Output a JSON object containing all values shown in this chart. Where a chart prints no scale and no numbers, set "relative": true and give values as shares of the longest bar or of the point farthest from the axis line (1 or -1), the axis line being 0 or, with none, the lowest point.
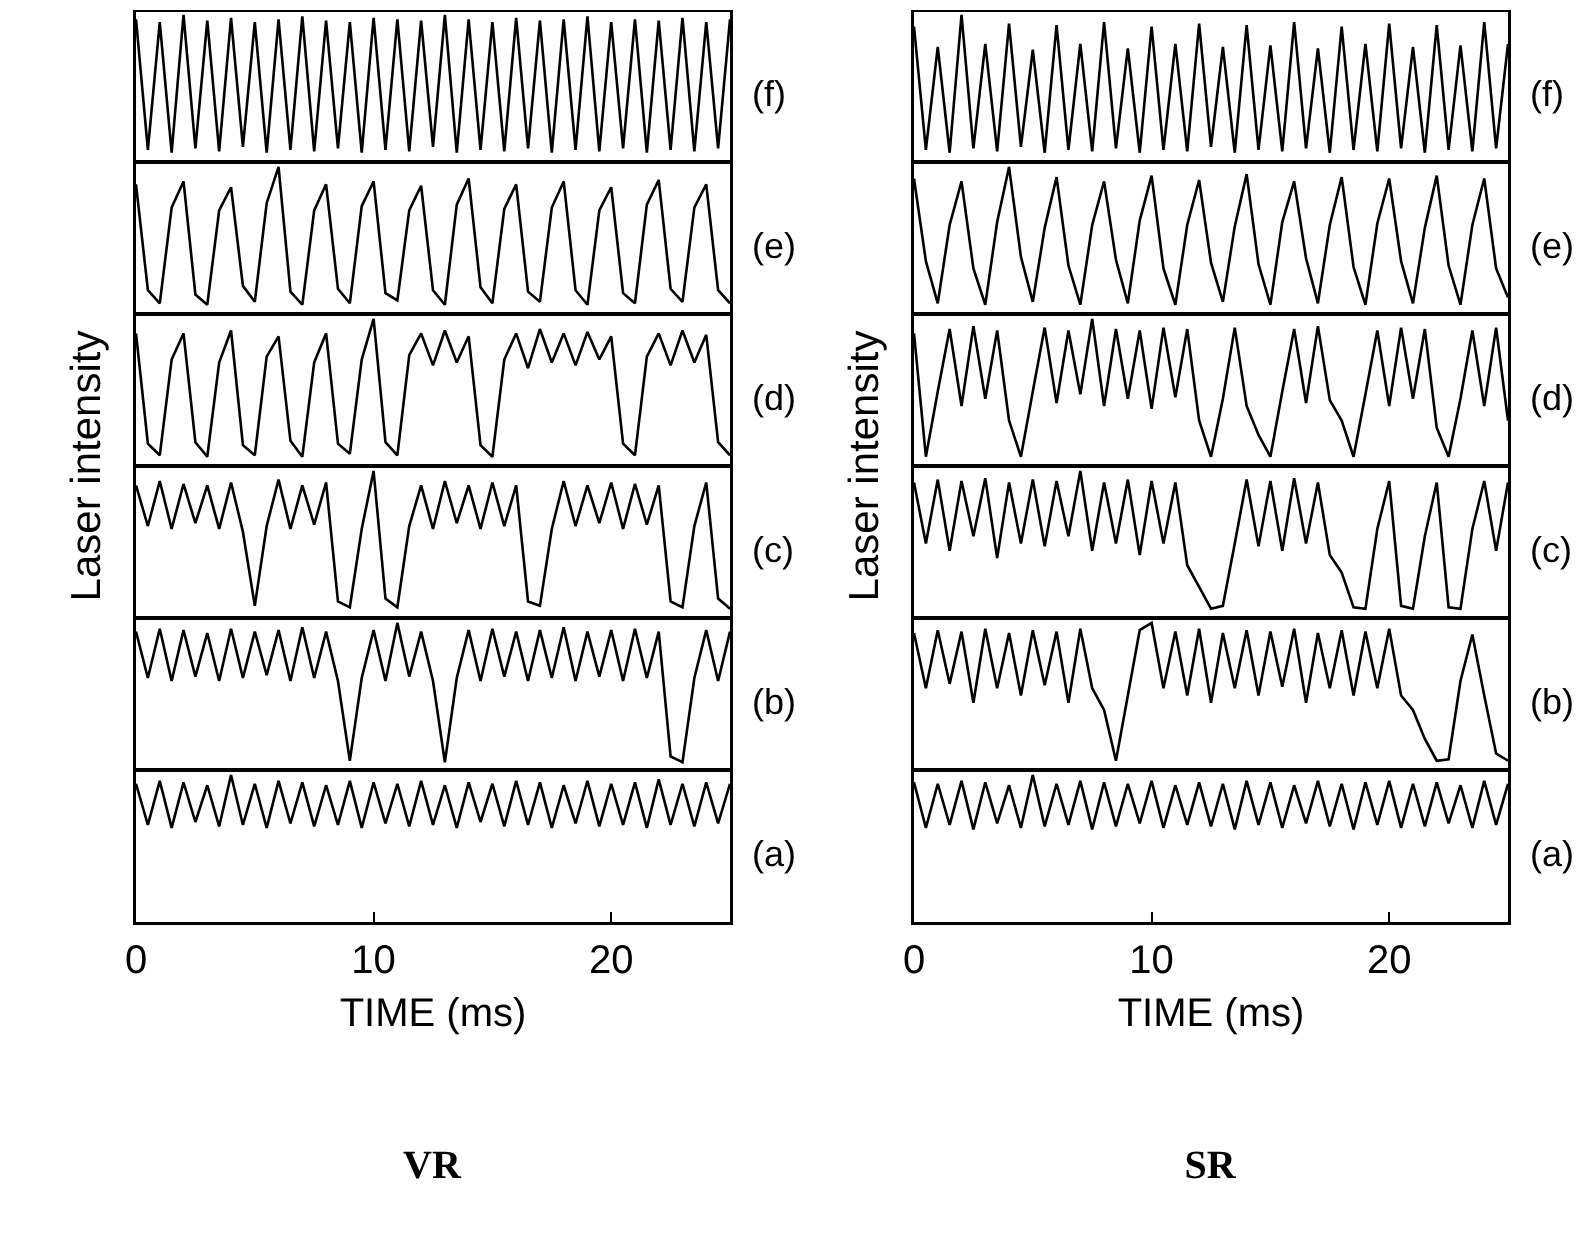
{
  "chart_data": [
    {
      "type": "line",
      "relative": true,
      "ylabel": "Laser intensity",
      "xlim": [
        0,
        25
      ],
      "tick_labels": false,
      "x": [
        0,
        0.5,
        1,
        1.5,
        2,
        2.5,
        3,
        3.5,
        4,
        4.5,
        5,
        5.5,
        6,
        6.5,
        7,
        7.5,
        8,
        8.5,
        9,
        9.5,
        10,
        10.5,
        11,
        11.5,
        12,
        12.5,
        13,
        13.5,
        14,
        14.5,
        15,
        15.5,
        16,
        16.5,
        17,
        17.5,
        18,
        18.5,
        19,
        19.5,
        20,
        20.5,
        21,
        21.5,
        22,
        22.5,
        23,
        23.5,
        24,
        24.5,
        25
      ],
      "series": [
        {
          "name": "(f)",
          "color": "#000000",
          "values": [
            0.97,
            0.07,
            0.95,
            0.05,
            1,
            0.08,
            0.96,
            0.06,
            0.98,
            0.09,
            0.95,
            0.05,
            0.97,
            0.07,
            0.99,
            0.06,
            0.96,
            0.08,
            0.95,
            0.05,
            0.98,
            0.07,
            0.97,
            0.06,
            0.96,
            0.09,
            1,
            0.05,
            0.97,
            0.07,
            0.95,
            0.06,
            0.98,
            0.08,
            0.96,
            0.05,
            0.97,
            0.07,
            0.99,
            0.06,
            0.95,
            0.08,
            0.97,
            0.05,
            0.96,
            0.07,
            0.98,
            0.06,
            0.95,
            0.08,
            0.97
          ]
        }
      ]
    },
    {
      "type": "line",
      "relative": true,
      "xlim": [
        0,
        25
      ],
      "tick_labels": false,
      "x": [
        0,
        0.5,
        1,
        1.5,
        2,
        2.5,
        3,
        3.5,
        4,
        4.5,
        5,
        5.5,
        6,
        6.5,
        7,
        7.5,
        8,
        8.5,
        9,
        9.5,
        10,
        10.5,
        11,
        11.5,
        12,
        12.5,
        13,
        13.5,
        14,
        14.5,
        15,
        15.5,
        16,
        16.5,
        17,
        17.5,
        18,
        18.5,
        19,
        19.5,
        20,
        20.5,
        21,
        21.5,
        22,
        22.5,
        23,
        23.5,
        24,
        24.5,
        25
      ],
      "series": [
        {
          "name": "(e)",
          "color": "#000000",
          "values": [
            0.88,
            0.15,
            0.06,
            0.72,
            0.9,
            0.12,
            0.05,
            0.7,
            0.86,
            0.18,
            0.07,
            0.75,
            1,
            0.14,
            0.05,
            0.7,
            0.88,
            0.16,
            0.06,
            0.73,
            0.9,
            0.13,
            0.08,
            0.7,
            0.87,
            0.15,
            0.05,
            0.74,
            0.92,
            0.17,
            0.06,
            0.71,
            0.88,
            0.14,
            0.07,
            0.72,
            0.9,
            0.15,
            0.05,
            0.7,
            0.86,
            0.13,
            0.06,
            0.74,
            0.91,
            0.16,
            0.07,
            0.72,
            0.88,
            0.15,
            0.06
          ]
        }
      ]
    },
    {
      "type": "line",
      "relative": true,
      "xlim": [
        0,
        25
      ],
      "tick_labels": false,
      "x": [
        0,
        0.5,
        1,
        1.5,
        2,
        2.5,
        3,
        3.5,
        4,
        4.5,
        5,
        5.5,
        6,
        6.5,
        7,
        7.5,
        8,
        8.5,
        9,
        9.5,
        10,
        10.5,
        11,
        11.5,
        12,
        12.5,
        13,
        13.5,
        14,
        14.5,
        15,
        15.5,
        16,
        16.5,
        17,
        17.5,
        18,
        18.5,
        19,
        19.5,
        20,
        20.5,
        21,
        21.5,
        22,
        22.5,
        23,
        23.5,
        24,
        24.5,
        25
      ],
      "series": [
        {
          "name": "(d)",
          "color": "#000000",
          "values": [
            0.9,
            0.14,
            0.06,
            0.72,
            0.9,
            0.15,
            0.05,
            0.7,
            0.92,
            0.13,
            0.06,
            0.74,
            0.88,
            0.16,
            0.05,
            0.7,
            0.9,
            0.14,
            0.07,
            0.72,
            1,
            0.15,
            0.06,
            0.75,
            0.9,
            0.68,
            0.92,
            0.7,
            0.88,
            0.13,
            0.05,
            0.72,
            0.9,
            0.66,
            0.93,
            0.7,
            0.9,
            0.68,
            0.91,
            0.72,
            0.88,
            0.14,
            0.06,
            0.74,
            0.9,
            0.68,
            0.92,
            0.7,
            0.89,
            0.15,
            0.06
          ]
        }
      ]
    },
    {
      "type": "line",
      "relative": true,
      "xlim": [
        0,
        25
      ],
      "tick_labels": false,
      "x": [
        0,
        0.5,
        1,
        1.5,
        2,
        2.5,
        3,
        3.5,
        4,
        4.5,
        5,
        5.5,
        6,
        6.5,
        7,
        7.5,
        8,
        8.5,
        9,
        9.5,
        10,
        10.5,
        11,
        11.5,
        12,
        12.5,
        13,
        13.5,
        14,
        14.5,
        15,
        15.5,
        16,
        16.5,
        17,
        17.5,
        18,
        18.5,
        19,
        19.5,
        20,
        20.5,
        21,
        21.5,
        22,
        22.5,
        23,
        23.5,
        24,
        24.5,
        25
      ],
      "series": [
        {
          "name": "(c)",
          "color": "#000000",
          "values": [
            0.9,
            0.62,
            0.93,
            0.6,
            0.91,
            0.64,
            0.9,
            0.6,
            0.92,
            0.58,
            0.07,
            0.62,
            0.94,
            0.6,
            0.9,
            0.63,
            0.92,
            0.1,
            0.06,
            0.6,
            1,
            0.12,
            0.06,
            0.62,
            0.9,
            0.6,
            0.93,
            0.64,
            0.9,
            0.6,
            0.92,
            0.62,
            0.9,
            0.1,
            0.07,
            0.6,
            0.93,
            0.62,
            0.9,
            0.64,
            0.92,
            0.6,
            0.91,
            0.63,
            0.9,
            0.1,
            0.06,
            0.62,
            0.92,
            0.12,
            0.05
          ]
        }
      ]
    },
    {
      "type": "line",
      "relative": true,
      "xlim": [
        0,
        25
      ],
      "tick_labels": false,
      "x": [
        0,
        0.5,
        1,
        1.5,
        2,
        2.5,
        3,
        3.5,
        4,
        4.5,
        5,
        5.5,
        6,
        6.5,
        7,
        7.5,
        8,
        8.5,
        9,
        9.5,
        10,
        10.5,
        11,
        11.5,
        12,
        12.5,
        13,
        13.5,
        14,
        14.5,
        15,
        15.5,
        16,
        16.5,
        17,
        17.5,
        18,
        18.5,
        19,
        19.5,
        20,
        20.5,
        21,
        21.5,
        22,
        22.5,
        23,
        23.5,
        24,
        24.5,
        25
      ],
      "series": [
        {
          "name": "(b)",
          "color": "#000000",
          "values": [
            0.94,
            0.62,
            0.96,
            0.6,
            0.95,
            0.63,
            0.93,
            0.6,
            0.96,
            0.62,
            0.94,
            0.64,
            0.95,
            0.6,
            0.97,
            0.62,
            0.94,
            0.6,
            0.05,
            0.62,
            0.95,
            0.6,
            1,
            0.63,
            0.94,
            0.6,
            0.04,
            0.62,
            0.95,
            0.6,
            0.96,
            0.63,
            0.94,
            0.6,
            0.95,
            0.62,
            0.97,
            0.6,
            0.94,
            0.63,
            0.95,
            0.6,
            0.96,
            0.62,
            0.94,
            0.08,
            0.04,
            0.62,
            0.95,
            0.6,
            0.94
          ]
        }
      ]
    },
    {
      "type": "line",
      "relative": true,
      "xlim": [
        0,
        25
      ],
      "xticks": [
        0,
        10,
        20
      ],
      "xlabel": "TIME (ms)",
      "tick_labels": "x",
      "annotations": [
        "VR"
      ],
      "x": [
        0,
        0.5,
        1,
        1.5,
        2,
        2.5,
        3,
        3.5,
        4,
        4.5,
        5,
        5.5,
        6,
        6.5,
        7,
        7.5,
        8,
        8.5,
        9,
        9.5,
        10,
        10.5,
        11,
        11.5,
        12,
        12.5,
        13,
        13.5,
        14,
        14.5,
        15,
        15.5,
        16,
        16.5,
        17,
        17.5,
        18,
        18.5,
        19,
        19.5,
        20,
        20.5,
        21,
        21.5,
        22,
        22.5,
        23,
        23.5,
        24,
        24.5,
        25
      ],
      "series": [
        {
          "name": "(a)",
          "color": "#000000",
          "values": [
            0.94,
            0.66,
            0.96,
            0.64,
            0.95,
            0.68,
            0.93,
            0.65,
            1,
            0.66,
            0.94,
            0.64,
            0.96,
            0.67,
            0.95,
            0.65,
            0.93,
            0.66,
            0.96,
            0.64,
            0.95,
            0.67,
            0.94,
            0.65,
            0.96,
            0.66,
            0.93,
            0.64,
            0.95,
            0.68,
            0.94,
            0.65,
            0.96,
            0.66,
            0.95,
            0.64,
            0.93,
            0.67,
            0.96,
            0.65,
            0.94,
            0.66,
            0.95,
            0.64,
            0.97,
            0.66,
            0.94,
            0.65,
            0.95,
            0.67,
            0.94
          ]
        }
      ]
    },
    {
      "type": "line",
      "relative": true,
      "ylabel": "Laser intensity",
      "xlim": [
        0,
        25
      ],
      "tick_labels": false,
      "x": [
        0,
        0.5,
        1,
        1.5,
        2,
        2.5,
        3,
        3.5,
        4,
        4.5,
        5,
        5.5,
        6,
        6.5,
        7,
        7.5,
        8,
        8.5,
        9,
        9.5,
        10,
        10.5,
        11,
        11.5,
        12,
        12.5,
        13,
        13.5,
        14,
        14.5,
        15,
        15.5,
        16,
        16.5,
        17,
        17.5,
        18,
        18.5,
        19,
        19.5,
        20,
        20.5,
        21,
        21.5,
        22,
        22.5,
        23,
        23.5,
        24,
        24.5,
        25
      ],
      "series": [
        {
          "name": "(f)",
          "color": "#000000",
          "values": [
            0.92,
            0.07,
            0.78,
            0.05,
            1,
            0.08,
            0.8,
            0.06,
            0.94,
            0.09,
            0.76,
            0.05,
            0.93,
            0.07,
            0.8,
            0.06,
            0.95,
            0.08,
            0.77,
            0.05,
            0.92,
            0.07,
            0.8,
            0.06,
            0.94,
            0.09,
            0.78,
            0.05,
            0.93,
            0.07,
            0.79,
            0.06,
            0.95,
            0.08,
            0.77,
            0.05,
            0.92,
            0.07,
            0.8,
            0.06,
            0.94,
            0.08,
            0.78,
            0.05,
            0.93,
            0.07,
            0.79,
            0.06,
            0.95,
            0.08,
            0.8
          ]
        }
      ]
    },
    {
      "type": "line",
      "relative": true,
      "xlim": [
        0,
        25
      ],
      "tick_labels": false,
      "x": [
        0,
        0.5,
        1,
        1.5,
        2,
        2.5,
        3,
        3.5,
        4,
        4.5,
        5,
        5.5,
        6,
        6.5,
        7,
        7.5,
        8,
        8.5,
        9,
        9.5,
        10,
        10.5,
        11,
        11.5,
        12,
        12.5,
        13,
        13.5,
        14,
        14.5,
        15,
        15.5,
        16,
        16.5,
        17,
        17.5,
        18,
        18.5,
        19,
        19.5,
        20,
        20.5,
        21,
        21.5,
        22,
        22.5,
        23,
        23.5,
        24,
        24.5,
        25
      ],
      "series": [
        {
          "name": "(e)",
          "color": "#000000",
          "values": [
            0.92,
            0.35,
            0.06,
            0.6,
            0.9,
            0.3,
            0.05,
            0.62,
            1,
            0.38,
            0.07,
            0.58,
            0.93,
            0.32,
            0.05,
            0.6,
            0.9,
            0.36,
            0.06,
            0.63,
            0.94,
            0.3,
            0.05,
            0.6,
            0.91,
            0.34,
            0.07,
            0.59,
            0.95,
            0.33,
            0.05,
            0.62,
            0.9,
            0.37,
            0.06,
            0.6,
            0.93,
            0.31,
            0.05,
            0.61,
            0.92,
            0.35,
            0.06,
            0.58,
            0.94,
            0.32,
            0.05,
            0.6,
            0.92,
            0.3,
            0.1
          ]
        }
      ]
    },
    {
      "type": "line",
      "relative": true,
      "xlim": [
        0,
        25
      ],
      "tick_labels": false,
      "x": [
        0,
        0.5,
        1,
        1.5,
        2,
        2.5,
        3,
        3.5,
        4,
        4.5,
        5,
        5.5,
        6,
        6.5,
        7,
        7.5,
        8,
        8.5,
        9,
        9.5,
        10,
        10.5,
        11,
        11.5,
        12,
        12.5,
        13,
        13.5,
        14,
        14.5,
        15,
        15.5,
        16,
        16.5,
        17,
        17.5,
        18,
        18.5,
        19,
        19.5,
        20,
        20.5,
        21,
        21.5,
        22,
        22.5,
        23,
        23.5,
        24,
        24.5,
        25
      ],
      "series": [
        {
          "name": "(d)",
          "color": "#000000",
          "values": [
            0.9,
            0.05,
            0.5,
            0.93,
            0.4,
            0.95,
            0.45,
            0.92,
            0.3,
            0.05,
            0.5,
            0.94,
            0.42,
            0.92,
            0.48,
            1,
            0.4,
            0.93,
            0.45,
            0.92,
            0.38,
            0.94,
            0.46,
            0.93,
            0.3,
            0.05,
            0.45,
            0.94,
            0.4,
            0.2,
            0.05,
            0.5,
            0.93,
            0.42,
            0.95,
            0.44,
            0.3,
            0.05,
            0.48,
            0.92,
            0.4,
            0.94,
            0.45,
            0.93,
            0.25,
            0.05,
            0.45,
            0.92,
            0.4,
            0.94,
            0.3
          ]
        }
      ]
    },
    {
      "type": "line",
      "relative": true,
      "xlim": [
        0,
        25
      ],
      "tick_labels": false,
      "x": [
        0,
        0.5,
        1,
        1.5,
        2,
        2.5,
        3,
        3.5,
        4,
        4.5,
        5,
        5.5,
        6,
        6.5,
        7,
        7.5,
        8,
        8.5,
        9,
        9.5,
        10,
        10.5,
        11,
        11.5,
        12,
        12.5,
        13,
        13.5,
        14,
        14.5,
        15,
        15.5,
        16,
        16.5,
        17,
        17.5,
        18,
        18.5,
        19,
        19.5,
        20,
        20.5,
        21,
        21.5,
        22,
        22.5,
        23,
        23.5,
        24,
        24.5,
        25
      ],
      "series": [
        {
          "name": "(c)",
          "color": "#000000",
          "values": [
            0.92,
            0.5,
            0.94,
            0.45,
            0.93,
            0.55,
            0.95,
            0.4,
            0.92,
            0.5,
            0.94,
            0.48,
            0.93,
            0.55,
            1,
            0.45,
            0.92,
            0.5,
            0.94,
            0.42,
            0.93,
            0.5,
            0.92,
            0.35,
            0.2,
            0.05,
            0.07,
            0.5,
            0.94,
            0.48,
            0.93,
            0.45,
            0.95,
            0.5,
            0.92,
            0.42,
            0.3,
            0.06,
            0.05,
            0.6,
            0.93,
            0.07,
            0.05,
            0.55,
            0.92,
            0.06,
            0.05,
            0.6,
            0.93,
            0.45,
            0.92
          ]
        }
      ]
    },
    {
      "type": "line",
      "relative": true,
      "xlim": [
        0,
        25
      ],
      "tick_labels": false,
      "x": [
        0,
        0.5,
        1,
        1.5,
        2,
        2.5,
        3,
        3.5,
        4,
        4.5,
        5,
        5.5,
        6,
        6.5,
        7,
        7.5,
        8,
        8.5,
        9,
        9.5,
        10,
        10.5,
        11,
        11.5,
        12,
        12.5,
        13,
        13.5,
        14,
        14.5,
        15,
        15.5,
        16,
        16.5,
        17,
        17.5,
        18,
        18.5,
        19,
        19.5,
        20,
        20.5,
        21,
        21.5,
        22,
        22.5,
        23,
        23.5,
        24,
        24.5,
        25
      ],
      "series": [
        {
          "name": "(b)",
          "color": "#000000",
          "values": [
            0.93,
            0.55,
            0.95,
            0.58,
            0.94,
            0.45,
            0.96,
            0.55,
            0.93,
            0.5,
            0.95,
            0.57,
            0.94,
            0.45,
            0.96,
            0.55,
            0.4,
            0.05,
            0.5,
            0.95,
            1,
            0.55,
            0.94,
            0.5,
            0.96,
            0.45,
            0.93,
            0.55,
            0.95,
            0.5,
            0.94,
            0.56,
            0.96,
            0.45,
            0.93,
            0.55,
            0.95,
            0.5,
            0.94,
            0.55,
            0.96,
            0.5,
            0.4,
            0.2,
            0.05,
            0.06,
            0.6,
            0.92,
            0.5,
            0.1,
            0.05
          ]
        }
      ]
    },
    {
      "type": "line",
      "relative": true,
      "xlim": [
        0,
        25
      ],
      "xticks": [
        0,
        10,
        20
      ],
      "xlabel": "TIME (ms)",
      "tick_labels": "x",
      "annotations": [
        "SR"
      ],
      "x": [
        0,
        0.5,
        1,
        1.5,
        2,
        2.5,
        3,
        3.5,
        4,
        4.5,
        5,
        5.5,
        6,
        6.5,
        7,
        7.5,
        8,
        8.5,
        9,
        9.5,
        10,
        10.5,
        11,
        11.5,
        12,
        12.5,
        13,
        13.5,
        14,
        14.5,
        15,
        15.5,
        16,
        16.5,
        17,
        17.5,
        18,
        18.5,
        19,
        19.5,
        20,
        20.5,
        21,
        21.5,
        22,
        22.5,
        23,
        23.5,
        24,
        24.5,
        25
      ],
      "series": [
        {
          "name": "(a)",
          "color": "#000000",
          "values": [
            0.95,
            0.64,
            0.94,
            0.66,
            0.96,
            0.63,
            0.95,
            0.67,
            0.93,
            0.64,
            1,
            0.65,
            0.94,
            0.66,
            0.96,
            0.63,
            0.95,
            0.65,
            0.94,
            0.67,
            0.96,
            0.64,
            0.93,
            0.66,
            0.95,
            0.65,
            0.94,
            0.63,
            0.96,
            0.66,
            0.95,
            0.64,
            0.93,
            0.67,
            0.96,
            0.65,
            0.94,
            0.63,
            0.95,
            0.66,
            0.96,
            0.64,
            0.94,
            0.65,
            0.95,
            0.67,
            0.93,
            0.64,
            0.96,
            0.66,
            0.94
          ]
        }
      ]
    }
  ]
}
